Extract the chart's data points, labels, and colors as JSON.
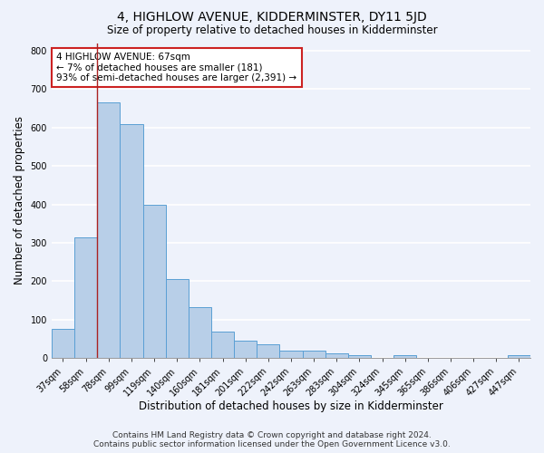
{
  "title": "4, HIGHLOW AVENUE, KIDDERMINSTER, DY11 5JD",
  "subtitle": "Size of property relative to detached houses in Kidderminster",
  "xlabel": "Distribution of detached houses by size in Kidderminster",
  "ylabel": "Number of detached properties",
  "categories": [
    "37sqm",
    "58sqm",
    "78sqm",
    "99sqm",
    "119sqm",
    "140sqm",
    "160sqm",
    "181sqm",
    "201sqm",
    "222sqm",
    "242sqm",
    "263sqm",
    "283sqm",
    "304sqm",
    "324sqm",
    "345sqm",
    "365sqm",
    "386sqm",
    "406sqm",
    "427sqm",
    "447sqm"
  ],
  "values": [
    75,
    315,
    665,
    610,
    400,
    205,
    133,
    70,
    45,
    35,
    20,
    20,
    12,
    8,
    0,
    8,
    0,
    0,
    0,
    0,
    8
  ],
  "bar_color": "#b8cfe8",
  "bar_edge_color": "#5a9fd4",
  "vline_x": 1.5,
  "vline_color": "#aa2222",
  "annotation_text": "4 HIGHLOW AVENUE: 67sqm\n← 7% of detached houses are smaller (181)\n93% of semi-detached houses are larger (2,391) →",
  "annotation_box_color": "#ffffff",
  "annotation_box_edge": "#cc2222",
  "ylim": [
    0,
    820
  ],
  "yticks": [
    0,
    100,
    200,
    300,
    400,
    500,
    600,
    700,
    800
  ],
  "footer_line1": "Contains HM Land Registry data © Crown copyright and database right 2024.",
  "footer_line2": "Contains public sector information licensed under the Open Government Licence v3.0.",
  "bg_color": "#eef2fb",
  "grid_color": "#ffffff",
  "title_fontsize": 10,
  "subtitle_fontsize": 8.5,
  "tick_fontsize": 7,
  "ylabel_fontsize": 8.5,
  "xlabel_fontsize": 8.5,
  "footer_fontsize": 6.5
}
